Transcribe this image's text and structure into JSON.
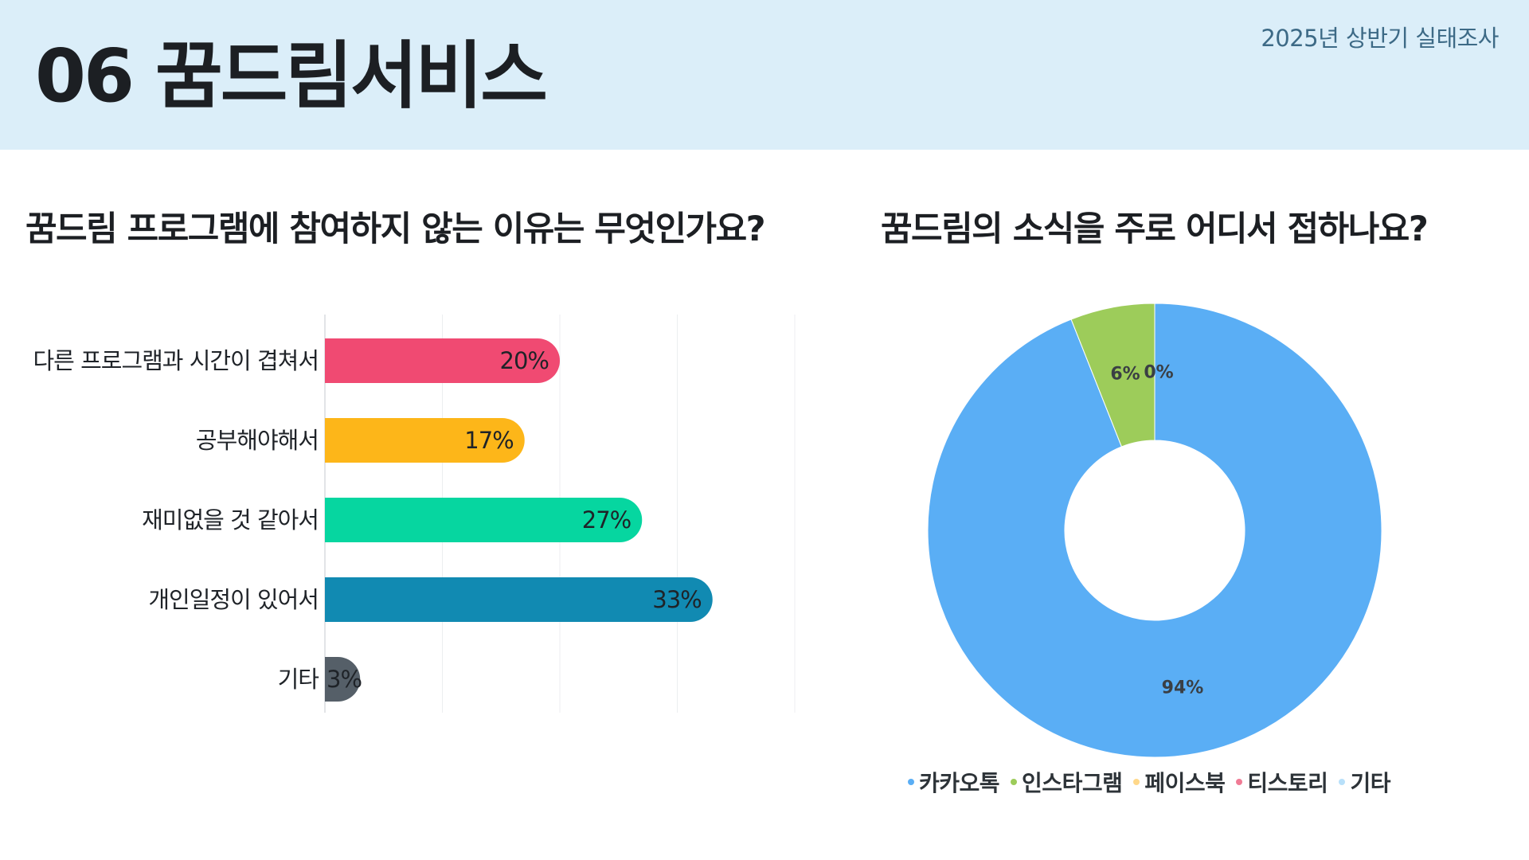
{
  "header": {
    "title": "06 꿈드림서비스",
    "survey_label": "2025년 상반기 실태조사"
  },
  "chart_data": [
    {
      "type": "bar",
      "orientation": "horizontal",
      "title": "꿈드림 프로그램에 참여하지 않는 이유는 무엇인가요?",
      "categories": [
        "다른 프로그램과 시간이 겹쳐서",
        "공부해야해서",
        "재미없을 것 같아서",
        "개인일정이 있어서",
        "기타"
      ],
      "values": [
        20,
        17,
        27,
        33,
        3
      ],
      "value_labels": [
        "20%",
        "17%",
        "27%",
        "33%",
        "3%"
      ],
      "colors": [
        "#f04a72",
        "#fdb619",
        "#06d6a0",
        "#118ab2",
        "#555f68"
      ],
      "xlim": [
        0,
        40
      ],
      "grid": true,
      "legend": "none"
    },
    {
      "type": "pie",
      "variant": "donut",
      "title": "꿈드림의 소식을 주로 어디서 접하나요?",
      "labels": [
        "카카오톡",
        "인스타그램",
        "페이스북",
        "티스토리",
        "기타"
      ],
      "values": [
        94,
        6,
        0,
        0,
        0
      ],
      "value_labels": [
        "94%",
        "6%",
        "0%",
        "0%",
        "0%"
      ],
      "shown_value_labels": [
        "94%",
        "6%",
        "0%"
      ],
      "colors": [
        "#5aaef5",
        "#9dcc5a",
        "#ffd88a",
        "#f07b95",
        "#b8e0fa"
      ],
      "legend": "bottom"
    }
  ]
}
